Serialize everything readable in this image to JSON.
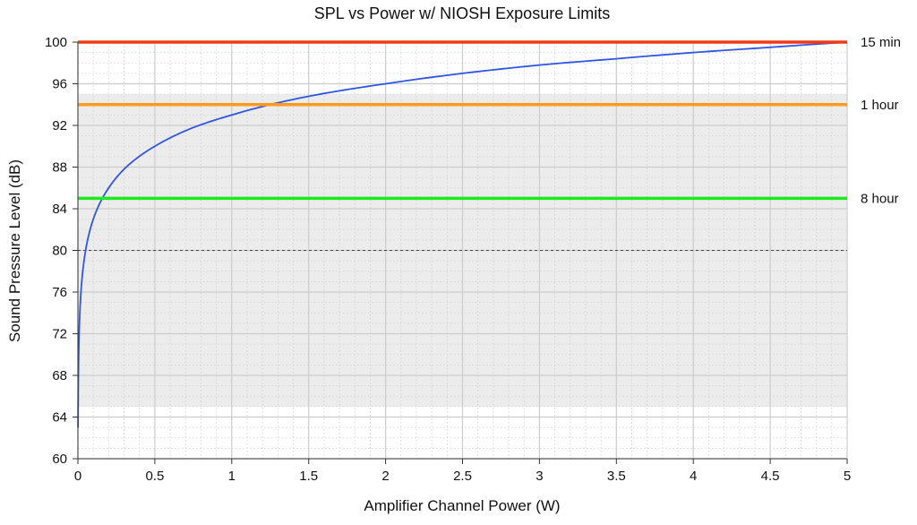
{
  "chart_data": {
    "type": "line",
    "title": "SPL vs Power w/ NIOSH Exposure Limits",
    "xlabel": "Amplifier Channel Power (W)",
    "ylabel": "Sound Pressure Level (dB)",
    "xlim": [
      0,
      5
    ],
    "ylim": [
      60,
      100
    ],
    "x_ticks": [
      "0",
      "0.5",
      "1",
      "1.5",
      "2",
      "2.5",
      "3",
      "3.5",
      "4",
      "4.5",
      "5"
    ],
    "y_ticks": [
      "60",
      "64",
      "68",
      "72",
      "76",
      "80",
      "84",
      "88",
      "92",
      "96",
      "100"
    ],
    "grid": true,
    "shaded_band": [
      65,
      95
    ],
    "reference_line": {
      "y": 80,
      "style": "dashed",
      "color": "#444444"
    },
    "series": [
      {
        "color": "#2f55e6",
        "curve_model": "spl = 93 + 10*log10(power)",
        "x": [
          0.001,
          0.003,
          0.01,
          0.03,
          0.05,
          0.1,
          0.2,
          0.3,
          0.5,
          0.75,
          1,
          1.25,
          1.5,
          2,
          2.5,
          3,
          3.5,
          4,
          4.5,
          5
        ],
        "y": [
          63.0,
          67.8,
          73.0,
          77.8,
          80.0,
          83.0,
          86.0,
          87.8,
          90.0,
          91.8,
          93.0,
          94.0,
          94.8,
          96.0,
          97.0,
          97.8,
          98.4,
          99.0,
          99.5,
          100.0
        ]
      }
    ],
    "limit_lines": [
      {
        "y": 100,
        "label": "15 min",
        "color": "#f03a17"
      },
      {
        "y": 94,
        "label": "1 hour",
        "color": "#ff9a1a"
      },
      {
        "y": 85,
        "label": "8 hour",
        "color": "#1ee81e"
      }
    ]
  }
}
